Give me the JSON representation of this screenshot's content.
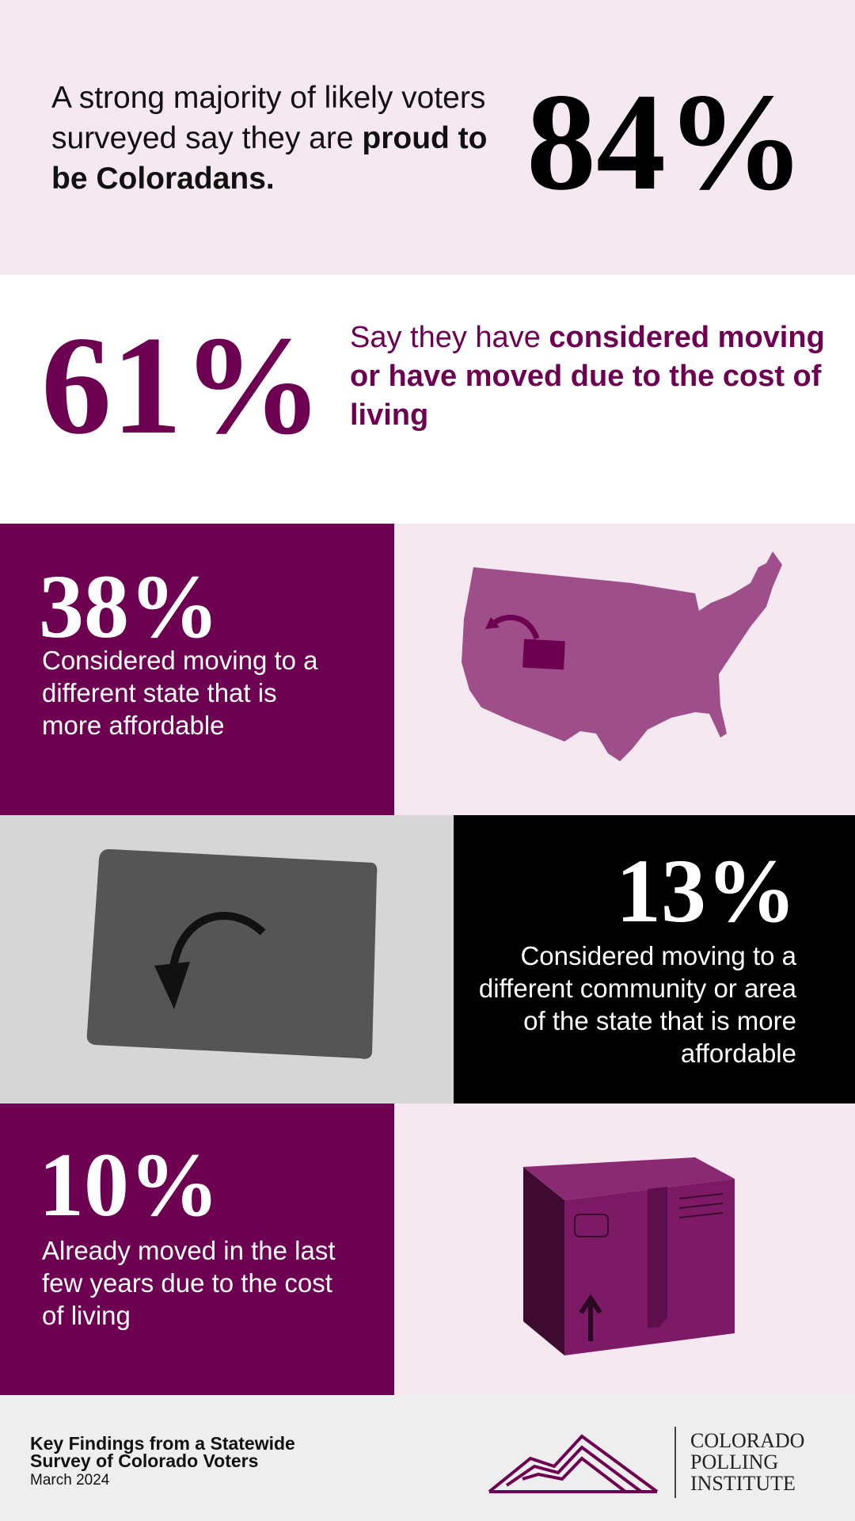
{
  "headline": {
    "text": "A strong majority of likely voters surveyed say they are",
    "emphasis": "proud to be Coloradans.",
    "stat": "84%"
  },
  "cost_of_living": {
    "stat": "61%",
    "text": "Say they have",
    "emphasis": "considered moving or have moved due to the cost of living"
  },
  "findings": [
    {
      "stat": "38%",
      "text": "Considered moving to a different state that is more affordable"
    },
    {
      "stat": "13%",
      "text": "Considered moving to a different community or area of the state that is more affordable"
    },
    {
      "stat": "10%",
      "text": "Already moved in the last few years due to the cost of living"
    }
  ],
  "footer": {
    "title": "Key Findings from a Statewide Survey of Colorado Voters",
    "date": "March 2024",
    "logo_lines": [
      "COLORADO",
      "POLLING",
      "INSTITUTE"
    ]
  }
}
